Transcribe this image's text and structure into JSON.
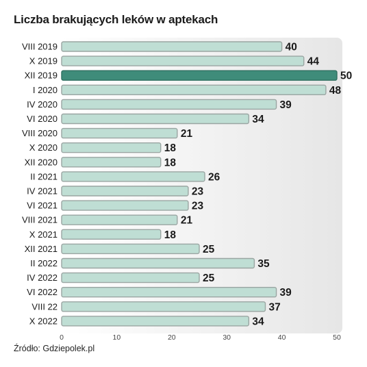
{
  "chart_data": {
    "type": "bar",
    "orientation": "horizontal",
    "title": "Liczba brakujących leków w aptekach",
    "source": "Źródło: Gdziepolek.pl",
    "categories": [
      "VIII 2019",
      "X 2019",
      "XII 2019",
      "I 2020",
      "IV 2020",
      "VI 2020",
      "VIII 2020",
      "X 2020",
      "XII 2020",
      "II 2021",
      "IV 2021",
      "VI 2021",
      "VIII 2021",
      "X 2021",
      "XII 2021",
      "II 2022",
      "IV 2022",
      "VI 2022",
      "VIII 22",
      "X 2022"
    ],
    "values": [
      40,
      44,
      50,
      48,
      39,
      34,
      21,
      18,
      18,
      26,
      23,
      23,
      21,
      18,
      25,
      35,
      25,
      39,
      37,
      34
    ],
    "highlight_index": 2,
    "xlim": [
      0,
      50
    ],
    "ticks": [
      0,
      10,
      20,
      30,
      40,
      50
    ],
    "grid": false,
    "colors": {
      "bar": "#bfded4",
      "bar_border": "#9aa5a2",
      "highlight": "#3f8c7a",
      "panel": "#efefef"
    }
  }
}
